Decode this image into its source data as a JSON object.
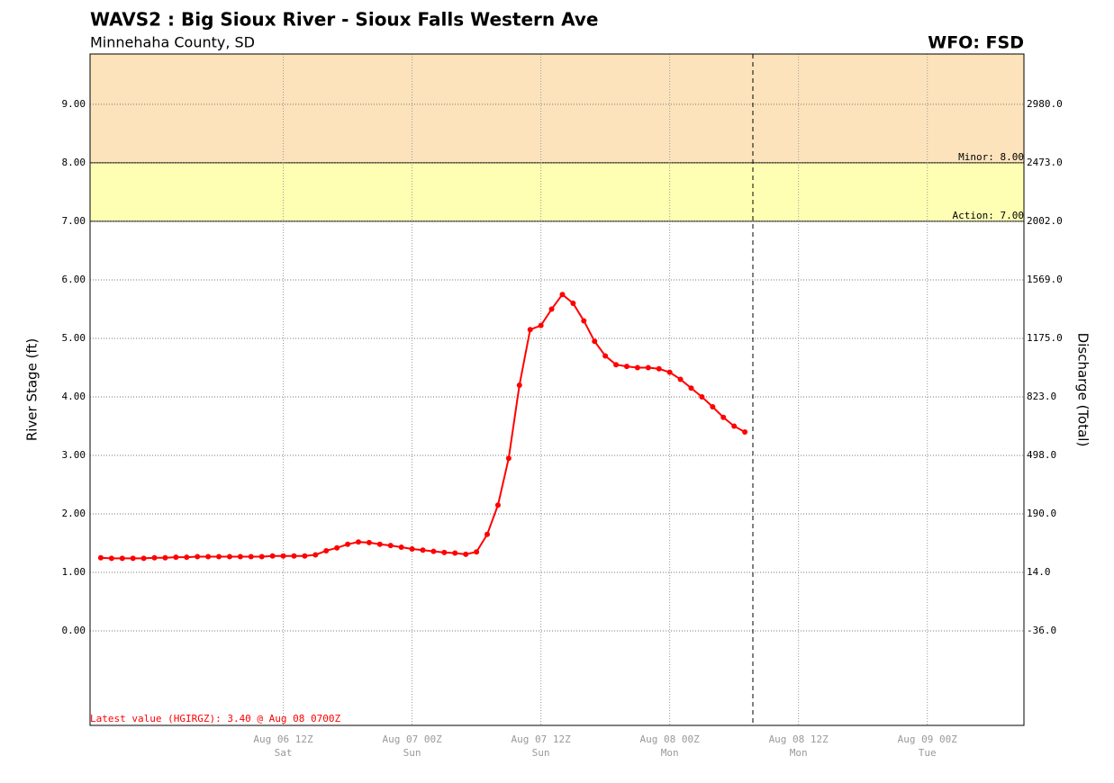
{
  "chart_data": {
    "type": "line",
    "title": "WAVS2 : Big Sioux River - Sioux Falls Western Ave",
    "subtitle": "Minnehaha County, SD",
    "office": "WFO: FSD",
    "ylabel": "River Stage (ft)",
    "y2label": "Discharge (Total)",
    "annotation": "Latest value (HGIRGZ): 3.40 @ Aug 08 0700Z",
    "color": "#ff0000",
    "grid": true,
    "ylim": [
      -1.615,
      9.86
    ],
    "yticks": [
      {
        "value": 0,
        "label": "0.00"
      },
      {
        "value": 1,
        "label": "1.00"
      },
      {
        "value": 2,
        "label": "2.00"
      },
      {
        "value": 3,
        "label": "3.00"
      },
      {
        "value": 4,
        "label": "4.00"
      },
      {
        "value": 5,
        "label": "5.00"
      },
      {
        "value": 6,
        "label": "6.00"
      },
      {
        "value": 7,
        "label": "7.00"
      },
      {
        "value": 8,
        "label": "8.00"
      },
      {
        "value": 9,
        "label": "9.00"
      }
    ],
    "y2ticks": [
      {
        "value": -36,
        "label": "-36.0"
      },
      {
        "value": 14,
        "label": "14.0"
      },
      {
        "value": 190,
        "label": "190.0"
      },
      {
        "value": 498,
        "label": "498.0"
      },
      {
        "value": 823,
        "label": "823.0"
      },
      {
        "value": 1175,
        "label": "1175.0"
      },
      {
        "value": 1569,
        "label": "1569.0"
      },
      {
        "value": 2002,
        "label": "2002.0"
      },
      {
        "value": 2473,
        "label": "2473.0"
      },
      {
        "value": 2980,
        "label": "2980.0"
      }
    ],
    "thresholds": [
      {
        "value": 7,
        "label": "Action: 7.00",
        "color": "#ffffb4"
      },
      {
        "value": 8,
        "label": "Minor: 8.00",
        "color": "#fde3bb"
      }
    ],
    "xlim": [
      "Aug 05 18Z",
      "Aug 09 09Z"
    ],
    "xticks": [
      "Aug 06 12Z",
      "Aug 07 00Z",
      "Aug 07 12Z",
      "Aug 08 00Z",
      "Aug 08 12Z",
      "Aug 09 00Z"
    ],
    "xtick_days": [
      "Sat",
      "Sun",
      "Sun",
      "Mon",
      "Mon",
      "Tue"
    ],
    "x": [
      "Aug 05 19Z",
      "Aug 05 20Z",
      "Aug 05 21Z",
      "Aug 05 22Z",
      "Aug 05 23Z",
      "Aug 06 00Z",
      "Aug 06 01Z",
      "Aug 06 02Z",
      "Aug 06 03Z",
      "Aug 06 04Z",
      "Aug 06 05Z",
      "Aug 06 06Z",
      "Aug 06 07Z",
      "Aug 06 08Z",
      "Aug 06 09Z",
      "Aug 06 10Z",
      "Aug 06 11Z",
      "Aug 06 12Z",
      "Aug 06 13Z",
      "Aug 06 14Z",
      "Aug 06 15Z",
      "Aug 06 16Z",
      "Aug 06 17Z",
      "Aug 06 18Z",
      "Aug 06 19Z",
      "Aug 06 20Z",
      "Aug 06 21Z",
      "Aug 06 22Z",
      "Aug 06 23Z",
      "Aug 07 00Z",
      "Aug 07 01Z",
      "Aug 07 02Z",
      "Aug 07 03Z",
      "Aug 07 04Z",
      "Aug 07 05Z",
      "Aug 07 06Z",
      "Aug 07 07Z",
      "Aug 07 08Z",
      "Aug 07 09Z",
      "Aug 07 10Z",
      "Aug 07 11Z",
      "Aug 07 12Z",
      "Aug 07 13Z",
      "Aug 07 14Z",
      "Aug 07 15Z",
      "Aug 07 16Z",
      "Aug 07 17Z",
      "Aug 07 18Z",
      "Aug 07 19Z",
      "Aug 07 20Z",
      "Aug 07 21Z",
      "Aug 07 22Z",
      "Aug 07 23Z",
      "Aug 08 00Z",
      "Aug 08 01Z",
      "Aug 08 02Z",
      "Aug 08 03Z",
      "Aug 08 04Z",
      "Aug 08 05Z",
      "Aug 08 06Z",
      "Aug 08 07Z"
    ],
    "values": [
      1.25,
      1.24,
      1.24,
      1.24,
      1.24,
      1.25,
      1.25,
      1.26,
      1.26,
      1.27,
      1.27,
      1.27,
      1.27,
      1.27,
      1.27,
      1.27,
      1.28,
      1.28,
      1.28,
      1.28,
      1.3,
      1.37,
      1.42,
      1.48,
      1.52,
      1.51,
      1.48,
      1.46,
      1.43,
      1.4,
      1.38,
      1.36,
      1.34,
      1.33,
      1.31,
      1.35,
      1.65,
      2.15,
      2.95,
      4.2,
      5.15,
      5.22,
      5.5,
      5.75,
      5.6,
      5.3,
      4.95,
      4.7,
      4.55,
      4.52,
      4.5,
      4.5,
      4.48,
      4.42,
      4.3,
      4.15,
      4.0,
      3.83,
      3.65,
      3.5,
      3.4
    ]
  }
}
